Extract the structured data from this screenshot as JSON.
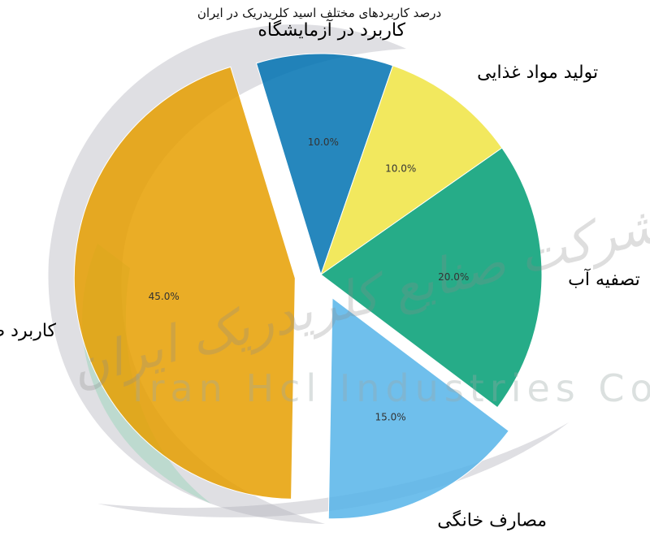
{
  "chart_data": {
    "type": "pie",
    "title": "درصد کاربردهای مختلف اسید کلریدریک در ایران",
    "slices": [
      {
        "label": "تصفیه آب",
        "value": 20.0,
        "pct_label": "20.0%",
        "color": "#009e73"
      },
      {
        "label": "مصارف خانگی",
        "value": 15.0,
        "pct_label": "15.0%",
        "color": "#56b4e9"
      },
      {
        "label": "کاربرد صنعتی",
        "value": 45.0,
        "pct_label": "45.0%",
        "color": "#e69f00"
      },
      {
        "label": "کاربرد در آزمایشگاه",
        "value": 10.0,
        "pct_label": "10.0%",
        "color": "#0072b2"
      },
      {
        "label": "تولید مواد غذایی",
        "value": 10.0,
        "pct_label": "10.0%",
        "color": "#f0e442"
      }
    ],
    "exploded": [
      "مصارف خانگی",
      "کاربرد صنعتی"
    ]
  },
  "watermark": {
    "text_fa": "شرکت صنایع کلریدریک ایران",
    "text_en": "Iran Hcl Industries Co"
  }
}
